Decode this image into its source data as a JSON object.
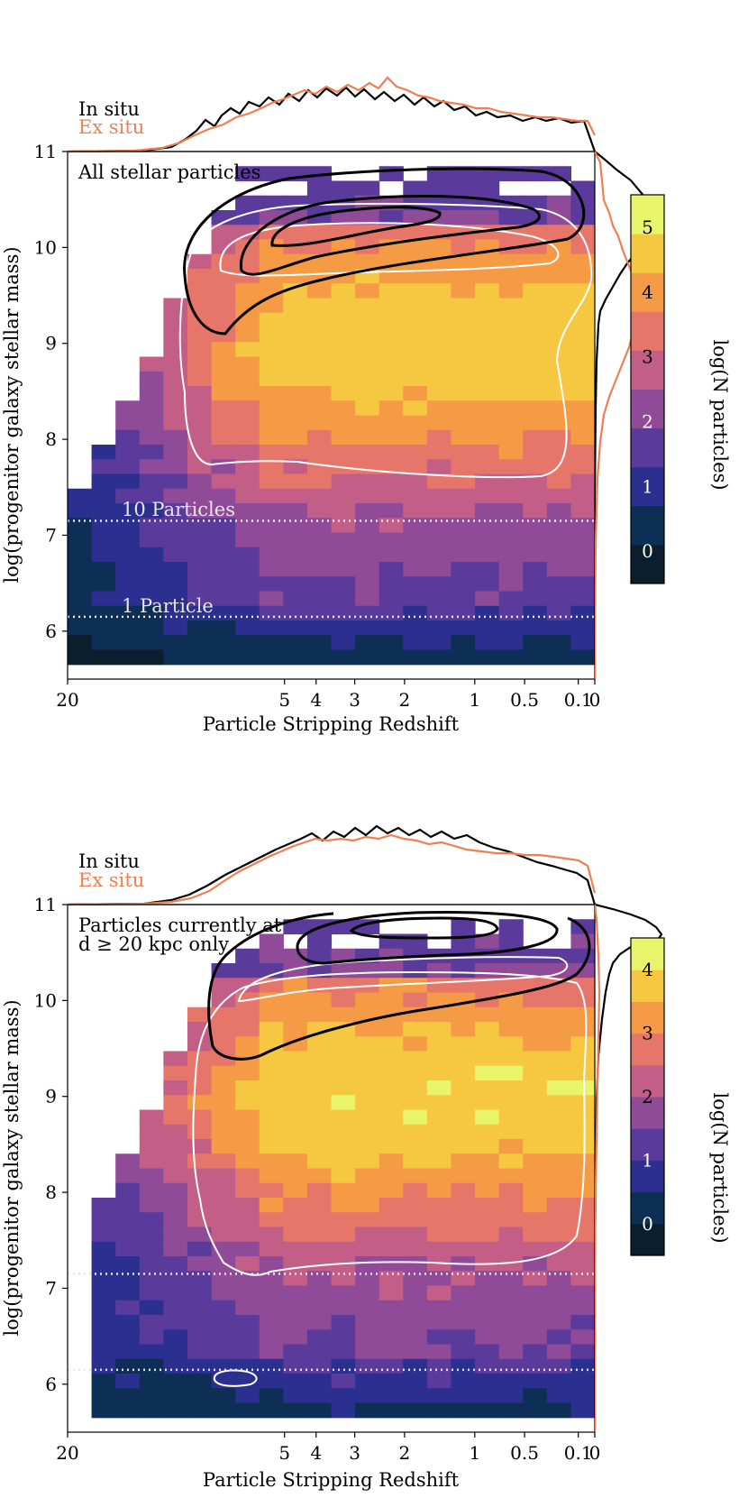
{
  "colors": {
    "insitu": "#000000",
    "exsitu": "#f07f4f",
    "dotted": "#e6e6e6",
    "contour_white": "#ffffff",
    "cmap": [
      "#0b1e2e",
      "#0d2f55",
      "#2b2f8f",
      "#5a3a9a",
      "#8f4a98",
      "#c35f86",
      "#e7766a",
      "#f59b45",
      "#f6c842",
      "#e8f56a"
    ]
  },
  "chart_data": [
    {
      "type": "heatmap",
      "panel_label": "All stellar particles",
      "xlabel": "Particle Stripping Redshift",
      "ylabel": "log(progenitor galaxy stellar mass)",
      "x_ticks": [
        {
          "label": "20",
          "z": 20
        },
        {
          "label": "5",
          "z": 5
        },
        {
          "label": "4",
          "z": 4
        },
        {
          "label": "3",
          "z": 3
        },
        {
          "label": "2",
          "z": 2
        },
        {
          "label": "1",
          "z": 1
        },
        {
          "label": "0.5",
          "z": 0.5
        },
        {
          "label": "0.1",
          "z": 0.1
        },
        {
          "label": "0",
          "z": 0
        }
      ],
      "y_ticks": [
        "6",
        "7",
        "8",
        "9",
        "10",
        "11"
      ],
      "ylim": [
        5.5,
        11
      ],
      "hlines": [
        {
          "y": 7.15,
          "label": "10 Particles"
        },
        {
          "y": 6.15,
          "label": "1 Particle"
        }
      ],
      "legend": [
        {
          "name": "In situ",
          "color": "#000000"
        },
        {
          "name": "Ex situ",
          "color": "#f07f4f"
        }
      ],
      "colorbar": {
        "label": "log(N particles)",
        "ticks": [
          "0",
          "1",
          "2",
          "3",
          "4",
          "5"
        ],
        "vmin": -0.5,
        "vmax": 5.5
      },
      "peak_logN": 4.7
    },
    {
      "type": "heatmap",
      "panel_label_line1": "Particles currently at",
      "panel_label_line2": "d ≥ 20 kpc only",
      "xlabel": "Particle Stripping Redshift",
      "ylabel": "log(progenitor galaxy stellar mass)",
      "x_ticks": [
        {
          "label": "20",
          "z": 20
        },
        {
          "label": "5",
          "z": 5
        },
        {
          "label": "4",
          "z": 4
        },
        {
          "label": "3",
          "z": 3
        },
        {
          "label": "2",
          "z": 2
        },
        {
          "label": "1",
          "z": 1
        },
        {
          "label": "0.5",
          "z": 0.5
        },
        {
          "label": "0.1",
          "z": 0.1
        },
        {
          "label": "0",
          "z": 0
        }
      ],
      "y_ticks": [
        "6",
        "7",
        "8",
        "9",
        "10",
        "11"
      ],
      "ylim": [
        5.5,
        11
      ],
      "hlines": [
        {
          "y": 7.15
        },
        {
          "y": 6.15
        }
      ],
      "legend": [
        {
          "name": "In situ",
          "color": "#000000"
        },
        {
          "name": "Ex situ",
          "color": "#f07f4f"
        }
      ],
      "colorbar": {
        "label": "log(N particles)",
        "ticks": [
          "0",
          "1",
          "2",
          "3",
          "4"
        ],
        "vmin": -0.5,
        "vmax": 4.5
      },
      "peak_logN": 3.9
    }
  ]
}
